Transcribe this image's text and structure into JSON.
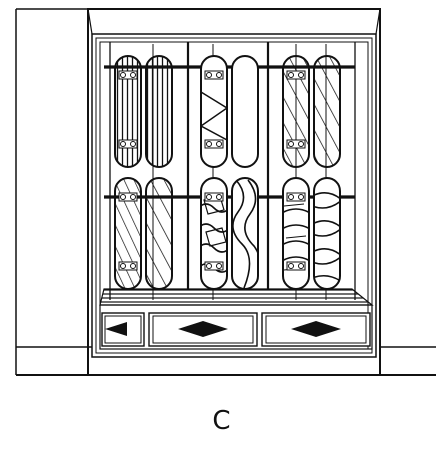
{
  "figure": {
    "label": "C"
  },
  "colors": {
    "ink": "#111111",
    "paper": "#ffffff"
  },
  "icons": {
    "hanger": "hanger-icon",
    "arrow": "left-right-arrow-icon"
  }
}
